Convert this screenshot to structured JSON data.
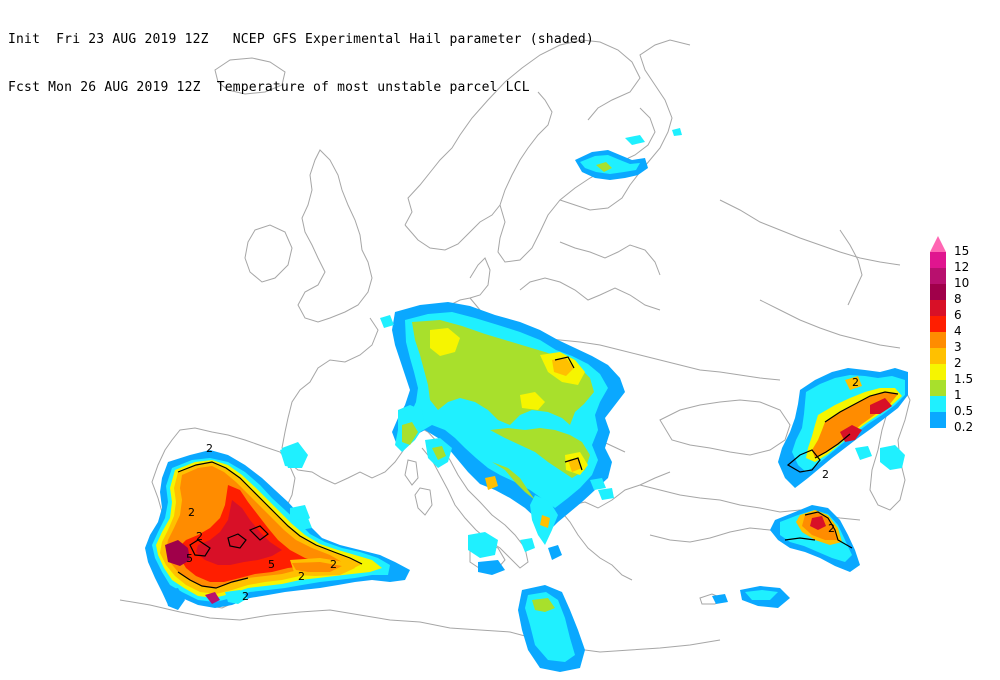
{
  "header": {
    "line1": "Init  Fri 23 AUG 2019 12Z   NCEP GFS Experimental Hail parameter (shaded)",
    "line2": "Fcst Mon 26 AUG 2019 12Z  Temperature of most unstable parcel LCL"
  },
  "legend": {
    "items": [
      {
        "label": "15",
        "color": "#ff3fb0",
        "shape": "triangle"
      },
      {
        "label": "12",
        "color": "#e0158f"
      },
      {
        "label": "10",
        "color": "#b8106e"
      },
      {
        "label": "8",
        "color": "#a0004a"
      },
      {
        "label": "6",
        "color": "#d81027"
      },
      {
        "label": "4",
        "color": "#ff1e00"
      },
      {
        "label": "3",
        "color": "#ff8c00"
      },
      {
        "label": "2",
        "color": "#ffc000"
      },
      {
        "label": "1.5",
        "color": "#f6f500"
      },
      {
        "label": "1",
        "color": "#a8e02c"
      },
      {
        "label": "0.5",
        "color": "#1ff0ff"
      },
      {
        "label": "0.2",
        "color": "#0aa8ff"
      }
    ]
  },
  "contour_labels": [
    {
      "text": "2"
    },
    {
      "text": "2"
    },
    {
      "text": "2"
    },
    {
      "text": "2"
    },
    {
      "text": "5"
    },
    {
      "text": "5"
    },
    {
      "text": "2"
    },
    {
      "text": "2"
    },
    {
      "text": "2"
    },
    {
      "text": "2"
    },
    {
      "text": "2"
    }
  ],
  "colors": {
    "coastline": "#a6a6a6",
    "contour": "#000000",
    "background": "#ffffff"
  }
}
